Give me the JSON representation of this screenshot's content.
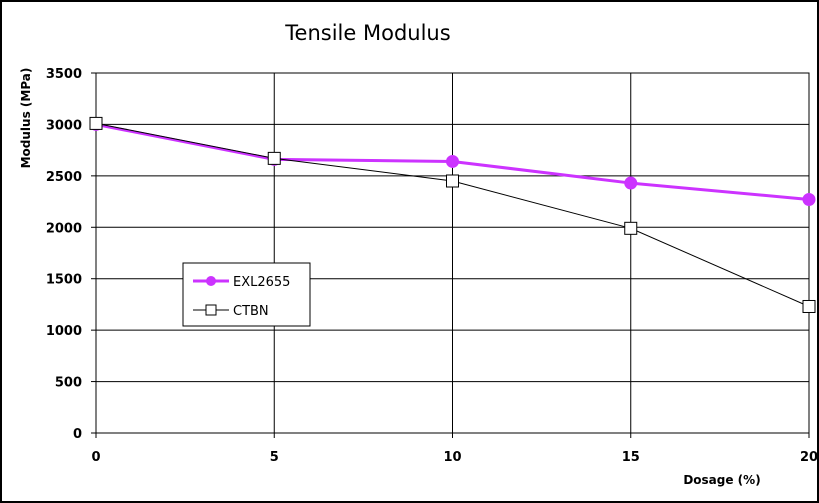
{
  "chart_data": {
    "type": "line",
    "title": "Tensile Modulus",
    "xlabel": "Dosage (%)",
    "ylabel": "Modulus (MPa)",
    "x": [
      0,
      5,
      10,
      15,
      20
    ],
    "xlim": [
      0,
      20
    ],
    "ylim": [
      0,
      3500
    ],
    "x_ticks": [
      "0",
      "5",
      "10",
      "15",
      "20"
    ],
    "y_ticks": [
      "0",
      "500",
      "1000",
      "1500",
      "2000",
      "2500",
      "3000",
      "3500"
    ],
    "grid": true,
    "legend_position": "middle-left",
    "series": [
      {
        "name": "EXL2655",
        "values": [
          3000,
          2660,
          2640,
          2430,
          2270
        ],
        "color": "#cc33ff",
        "marker": "filled-circle"
      },
      {
        "name": "CTBN",
        "values": [
          3010,
          2670,
          2450,
          1990,
          1230
        ],
        "color": "#000000",
        "marker": "open-square"
      }
    ]
  }
}
